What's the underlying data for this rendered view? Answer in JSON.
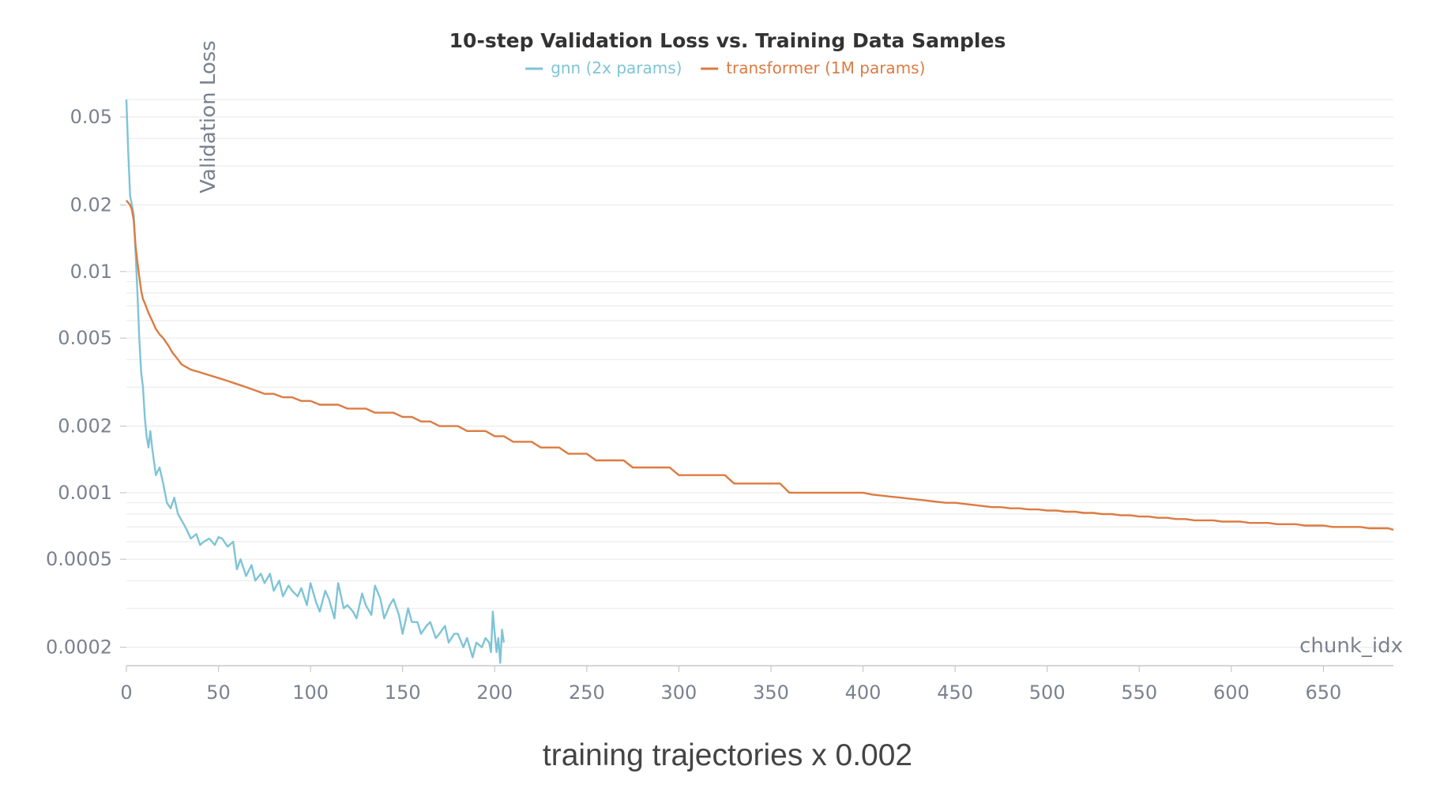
{
  "chart_data": {
    "type": "line",
    "title": "10-step Validation Loss vs. Training Data Samples",
    "xlabel": "chunk_idx",
    "ylabel": "Validation Loss",
    "x_scale": "linear",
    "y_scale": "log",
    "xlim": [
      0,
      688
    ],
    "ylim": [
      0.000165,
      0.062
    ],
    "x_ticks": [
      0,
      50,
      100,
      150,
      200,
      250,
      300,
      350,
      400,
      450,
      500,
      550,
      600,
      650
    ],
    "y_ticks": [
      {
        "value": 0.05,
        "label": "0.05"
      },
      {
        "value": 0.02,
        "label": "0.02"
      },
      {
        "value": 0.01,
        "label": "0.01"
      },
      {
        "value": 0.005,
        "label": "0.005"
      },
      {
        "value": 0.002,
        "label": "0.002"
      },
      {
        "value": 0.001,
        "label": "0.001"
      },
      {
        "value": 0.0005,
        "label": "0.0005"
      },
      {
        "value": 0.0002,
        "label": "0.0002"
      }
    ],
    "grid": true,
    "legend_position": "top-center",
    "series": [
      {
        "name": "gnn (2x params)",
        "color": "#7ec4d6",
        "x": [
          0,
          1,
          2,
          3,
          4,
          5,
          6,
          7,
          8,
          9,
          10,
          11,
          12,
          13,
          14,
          16,
          18,
          20,
          22,
          24,
          26,
          28,
          30,
          32,
          35,
          38,
          40,
          42,
          45,
          48,
          50,
          52,
          55,
          58,
          60,
          62,
          65,
          68,
          70,
          73,
          75,
          78,
          80,
          83,
          85,
          88,
          90,
          93,
          95,
          98,
          100,
          103,
          105,
          108,
          110,
          113,
          115,
          118,
          120,
          123,
          125,
          128,
          130,
          133,
          135,
          138,
          140,
          143,
          145,
          148,
          150,
          153,
          155,
          158,
          160,
          163,
          165,
          168,
          170,
          173,
          175,
          178,
          180,
          183,
          185,
          188,
          190,
          193,
          195,
          197,
          198,
          199,
          200,
          201,
          202,
          203,
          204,
          205
        ],
        "y": [
          0.06,
          0.035,
          0.022,
          0.02,
          0.018,
          0.012,
          0.008,
          0.005,
          0.0035,
          0.003,
          0.0022,
          0.0018,
          0.0016,
          0.0019,
          0.0016,
          0.0012,
          0.0013,
          0.0011,
          0.0009,
          0.00085,
          0.00095,
          0.0008,
          0.00075,
          0.0007,
          0.00062,
          0.00065,
          0.00058,
          0.0006,
          0.00062,
          0.00058,
          0.00063,
          0.00062,
          0.00057,
          0.0006,
          0.00045,
          0.0005,
          0.00042,
          0.00047,
          0.0004,
          0.00043,
          0.00039,
          0.00043,
          0.00036,
          0.0004,
          0.00034,
          0.00038,
          0.00036,
          0.00034,
          0.00037,
          0.00031,
          0.00039,
          0.00032,
          0.00029,
          0.00036,
          0.00033,
          0.00027,
          0.00039,
          0.0003,
          0.00031,
          0.00029,
          0.00027,
          0.00035,
          0.00031,
          0.00028,
          0.00038,
          0.00033,
          0.00027,
          0.00031,
          0.00033,
          0.00028,
          0.00023,
          0.0003,
          0.00026,
          0.00026,
          0.00023,
          0.00025,
          0.00026,
          0.00022,
          0.00023,
          0.00025,
          0.00021,
          0.00023,
          0.00023,
          0.0002,
          0.00022,
          0.00018,
          0.00021,
          0.0002,
          0.00022,
          0.00021,
          0.00019,
          0.00029,
          0.00023,
          0.00019,
          0.00022,
          0.00017,
          0.00024,
          0.00021
        ]
      },
      {
        "name": "transformer (1M params)",
        "color": "#dc7b41",
        "x": [
          0,
          2,
          3,
          4,
          5,
          6,
          7,
          8,
          9,
          10,
          12,
          14,
          16,
          18,
          20,
          23,
          25,
          28,
          30,
          35,
          40,
          45,
          50,
          55,
          60,
          65,
          70,
          75,
          80,
          85,
          90,
          95,
          100,
          105,
          110,
          115,
          120,
          125,
          130,
          135,
          140,
          145,
          150,
          155,
          160,
          165,
          170,
          175,
          180,
          185,
          190,
          195,
          200,
          205,
          210,
          215,
          220,
          225,
          230,
          235,
          240,
          245,
          250,
          255,
          260,
          265,
          270,
          275,
          280,
          285,
          290,
          295,
          300,
          305,
          310,
          315,
          320,
          325,
          330,
          335,
          340,
          345,
          350,
          355,
          360,
          365,
          370,
          375,
          380,
          385,
          390,
          395,
          400,
          405,
          410,
          415,
          420,
          425,
          430,
          435,
          440,
          445,
          450,
          455,
          460,
          465,
          470,
          475,
          480,
          485,
          490,
          495,
          500,
          505,
          510,
          515,
          520,
          525,
          530,
          535,
          540,
          545,
          550,
          555,
          560,
          565,
          570,
          575,
          580,
          585,
          590,
          595,
          600,
          605,
          610,
          615,
          620,
          625,
          630,
          635,
          640,
          645,
          650,
          655,
          660,
          665,
          670,
          675,
          680,
          685,
          688
        ],
        "y": [
          0.021,
          0.02,
          0.019,
          0.017,
          0.013,
          0.011,
          0.0095,
          0.0082,
          0.0075,
          0.0072,
          0.0065,
          0.006,
          0.0055,
          0.0052,
          0.005,
          0.0046,
          0.0043,
          0.004,
          0.0038,
          0.0036,
          0.0035,
          0.0034,
          0.0033,
          0.0032,
          0.0031,
          0.003,
          0.0029,
          0.0028,
          0.0028,
          0.0027,
          0.0027,
          0.0026,
          0.0026,
          0.0025,
          0.0025,
          0.0025,
          0.0024,
          0.0024,
          0.0024,
          0.0023,
          0.0023,
          0.0023,
          0.0022,
          0.0022,
          0.0021,
          0.0021,
          0.002,
          0.002,
          0.002,
          0.0019,
          0.0019,
          0.0019,
          0.0018,
          0.0018,
          0.0017,
          0.0017,
          0.0017,
          0.0016,
          0.0016,
          0.0016,
          0.0015,
          0.0015,
          0.0015,
          0.0014,
          0.0014,
          0.0014,
          0.0014,
          0.0013,
          0.0013,
          0.0013,
          0.0013,
          0.0013,
          0.0012,
          0.0012,
          0.0012,
          0.0012,
          0.0012,
          0.0012,
          0.0011,
          0.0011,
          0.0011,
          0.0011,
          0.0011,
          0.0011,
          0.001,
          0.001,
          0.001,
          0.001,
          0.001,
          0.001,
          0.001,
          0.001,
          0.001,
          0.00098,
          0.00097,
          0.00096,
          0.00095,
          0.00094,
          0.00093,
          0.00092,
          0.00091,
          0.0009,
          0.0009,
          0.00089,
          0.00088,
          0.00087,
          0.00086,
          0.00086,
          0.00085,
          0.00085,
          0.00084,
          0.00084,
          0.00083,
          0.00083,
          0.00082,
          0.00082,
          0.00081,
          0.00081,
          0.0008,
          0.0008,
          0.00079,
          0.00079,
          0.00078,
          0.00078,
          0.00077,
          0.00077,
          0.00076,
          0.00076,
          0.00075,
          0.00075,
          0.00075,
          0.00074,
          0.00074,
          0.00074,
          0.00073,
          0.00073,
          0.00073,
          0.00072,
          0.00072,
          0.00072,
          0.00071,
          0.00071,
          0.00071,
          0.0007,
          0.0007,
          0.0007,
          0.0007,
          0.00069,
          0.00069,
          0.00069,
          0.00068
        ]
      }
    ]
  },
  "caption": "training trajectories x 0.002"
}
